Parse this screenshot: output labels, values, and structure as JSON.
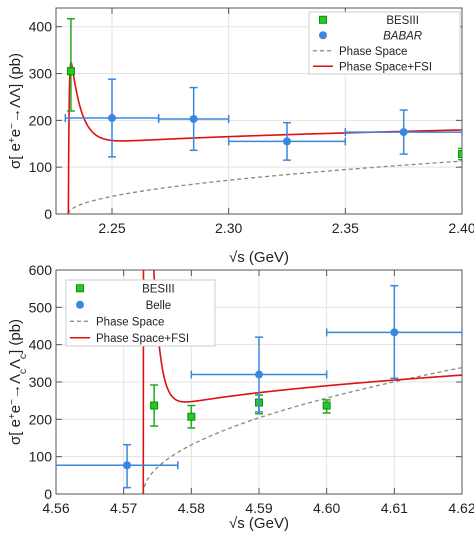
{
  "chart_data": [
    {
      "type": "scatter",
      "panel": "top",
      "xlabel_prefix": "√s",
      "xlabel_unit": " (GeV)",
      "ylabel_prefix": "σ[ e",
      "ylabel_reaction": "→ΛΛ",
      "ylabel_unit": "] (pb)",
      "xlim": [
        2.226,
        2.4
      ],
      "ylim": [
        0,
        440
      ],
      "grid": true,
      "legend_position": "top-right",
      "x_ticks": [
        {
          "value": 2.25,
          "label": "2.25"
        },
        {
          "value": 2.3,
          "label": "2.30"
        },
        {
          "value": 2.35,
          "label": "2.35"
        },
        {
          "value": 2.4,
          "label": "2.40"
        }
      ],
      "y_ticks": [
        {
          "value": 0,
          "label": "0"
        },
        {
          "value": 100,
          "label": "100"
        },
        {
          "value": 200,
          "label": "200"
        },
        {
          "value": 300,
          "label": "300"
        },
        {
          "value": 400,
          "label": "400"
        }
      ],
      "legend": [
        {
          "label": "BESIII",
          "kind": "square",
          "color": "#22cc22"
        },
        {
          "label": "BABAR",
          "kind": "circle",
          "color": "#3a86e0",
          "italic": true
        },
        {
          "label": "Phase Space",
          "kind": "dashed",
          "color": "#888888"
        },
        {
          "label": "Phase Space+FSI",
          "kind": "solid",
          "color": "#dd1111"
        }
      ],
      "series": [
        {
          "name": "BESIII",
          "marker": "square",
          "color": "#22cc22",
          "points": [
            {
              "x": 2.2324,
              "y": 305,
              "yerr_low": 85,
              "yerr_high": 112,
              "xerr": 0
            },
            {
              "x": 2.4,
              "y": 128,
              "yerr_low": 12,
              "yerr_high": 12,
              "xerr": 0
            }
          ]
        },
        {
          "name": "BABAR",
          "marker": "circle",
          "color": "#3a86e0",
          "points": [
            {
              "x": 2.25,
              "y": 205,
              "yerr_low": 83,
              "yerr_high": 83,
              "xerr_low": 0.02,
              "xerr_high": 0.02
            },
            {
              "x": 2.285,
              "y": 203,
              "yerr_low": 67,
              "yerr_high": 67,
              "xerr_low": 0.015,
              "xerr_high": 0.015
            },
            {
              "x": 2.325,
              "y": 155,
              "yerr_low": 40,
              "yerr_high": 40,
              "xerr_low": 0.025,
              "xerr_high": 0.025
            },
            {
              "x": 2.375,
              "y": 175,
              "yerr_low": 47,
              "yerr_high": 47,
              "xerr_low": 0.025,
              "xerr_high": 0.025
            }
          ]
        }
      ],
      "curves": {
        "threshold": 2.2313,
        "phase_space_amplitude": 275,
        "fsi_base": 140,
        "fsi_peak_extra": 250,
        "fsi_decay": 0.0045
      }
    },
    {
      "type": "scatter",
      "panel": "bottom",
      "xlabel_prefix": "√s",
      "xlabel_unit": " (GeV)",
      "ylabel_prefix": "σ[ e",
      "ylabel_reaction": "→Λ",
      "ylabel_unit": "] (pb)",
      "xlim": [
        4.56,
        4.62
      ],
      "ylim": [
        0,
        600
      ],
      "grid": true,
      "legend_position": "top-left",
      "x_ticks": [
        {
          "value": 4.56,
          "label": "4.56"
        },
        {
          "value": 4.57,
          "label": "4.57"
        },
        {
          "value": 4.58,
          "label": "4.58"
        },
        {
          "value": 4.59,
          "label": "4.59"
        },
        {
          "value": 4.6,
          "label": "4.60"
        },
        {
          "value": 4.61,
          "label": "4.61"
        },
        {
          "value": 4.62,
          "label": "4.62"
        }
      ],
      "y_ticks": [
        {
          "value": 0,
          "label": "0"
        },
        {
          "value": 100,
          "label": "100"
        },
        {
          "value": 200,
          "label": "200"
        },
        {
          "value": 300,
          "label": "300"
        },
        {
          "value": 400,
          "label": "400"
        },
        {
          "value": 500,
          "label": "500"
        },
        {
          "value": 600,
          "label": "600"
        }
      ],
      "legend": [
        {
          "label": "BESIII",
          "kind": "square",
          "color": "#22cc22"
        },
        {
          "label": "Belle",
          "kind": "circle",
          "color": "#3a86e0"
        },
        {
          "label": "Phase Space",
          "kind": "dashed",
          "color": "#888888"
        },
        {
          "label": "Phase Space+FSI",
          "kind": "solid",
          "color": "#dd1111"
        }
      ],
      "series": [
        {
          "name": "BESIII",
          "marker": "square",
          "color": "#22cc22",
          "points": [
            {
              "x": 4.5745,
              "y": 237,
              "yerr_low": 55,
              "yerr_high": 55,
              "xerr": 0
            },
            {
              "x": 4.58,
              "y": 207,
              "yerr_low": 30,
              "yerr_high": 30,
              "xerr": 0
            },
            {
              "x": 4.59,
              "y": 245,
              "yerr_low": 30,
              "yerr_high": 20,
              "xerr": 0
            },
            {
              "x": 4.6,
              "y": 237,
              "yerr_low": 20,
              "yerr_high": 15,
              "xerr": 0
            }
          ]
        },
        {
          "name": "Belle",
          "marker": "circle",
          "color": "#3a86e0",
          "points": [
            {
              "x": 4.5705,
              "y": 77,
              "yerr_low": 60,
              "yerr_high": 55,
              "xerr_low": 0.0105,
              "xerr_high": 0.0075
            },
            {
              "x": 4.59,
              "y": 320,
              "yerr_low": 100,
              "yerr_high": 100,
              "xerr_low": 0.01,
              "xerr_high": 0.01
            },
            {
              "x": 4.61,
              "y": 433,
              "yerr_low": 123,
              "yerr_high": 125,
              "xerr_low": 0.01,
              "xerr_high": 0.01
            }
          ]
        }
      ],
      "curves": {
        "threshold": 4.5729,
        "phase_space_amplitude": 1560,
        "fsi_base": 200,
        "fsi_peak_extra": 1800,
        "fsi_decay": 0.001
      }
    }
  ]
}
